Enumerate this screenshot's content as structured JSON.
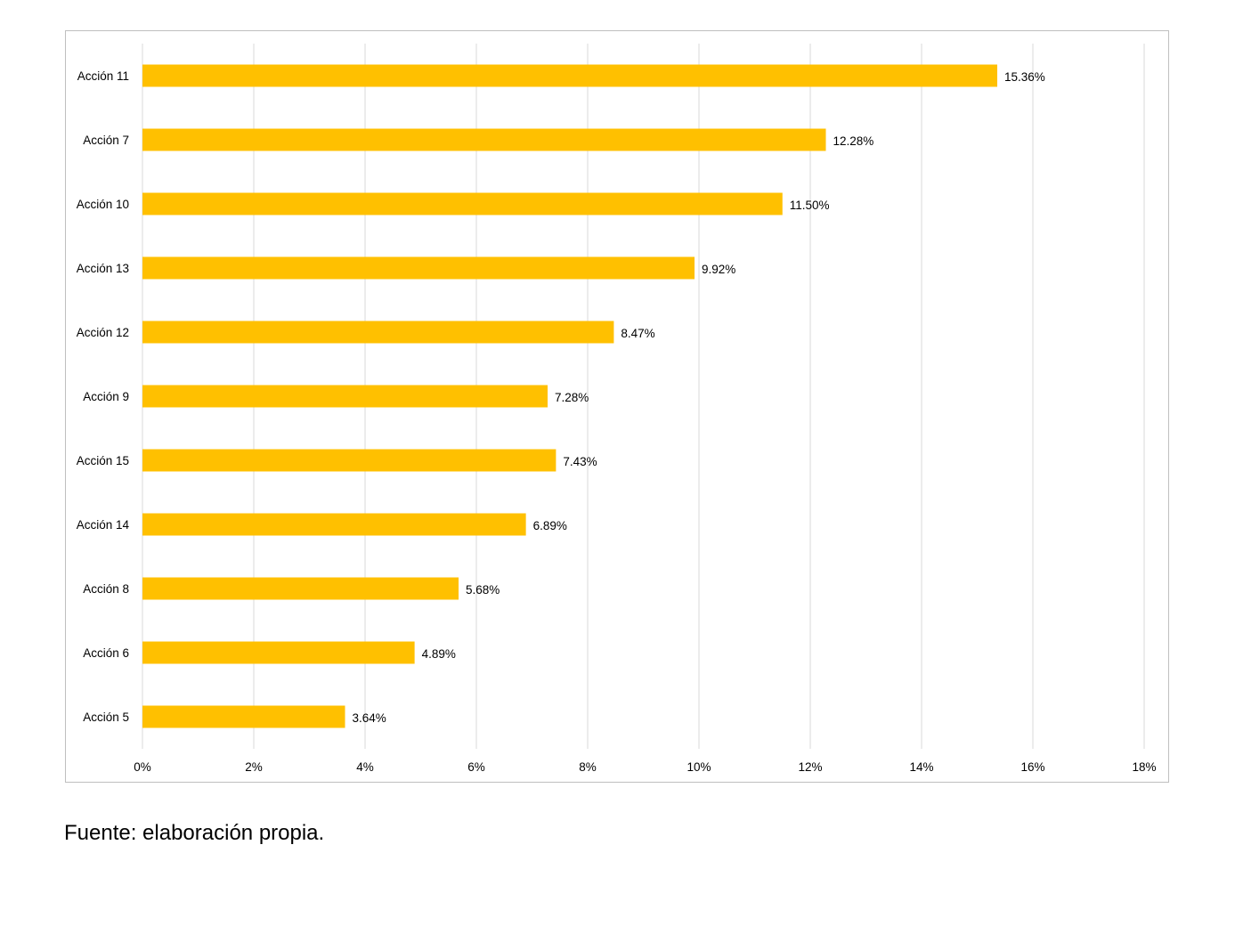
{
  "chart_data": {
    "type": "bar",
    "orientation": "horizontal",
    "categories": [
      "Acción 11",
      "Acción 7",
      "Acción 10",
      "Acción 13",
      "Acción 12",
      "Acción 9",
      "Acción 15",
      "Acción 14",
      "Acción 8",
      "Acción 6",
      "Acción 5"
    ],
    "values": [
      15.36,
      12.28,
      11.5,
      9.92,
      8.47,
      7.28,
      7.43,
      6.89,
      5.68,
      4.89,
      3.64
    ],
    "value_labels": [
      "15.36%",
      "12.28%",
      "11.50%",
      "9.92%",
      "8.47%",
      "7.28%",
      "7.43%",
      "6.89%",
      "5.68%",
      "4.89%",
      "3.64%"
    ],
    "x_ticks": [
      "0%",
      "2%",
      "4%",
      "6%",
      "8%",
      "10%",
      "12%",
      "14%",
      "16%",
      "18%"
    ],
    "xlim": [
      0,
      18
    ],
    "grid": "vertical",
    "title": "",
    "xlabel": "",
    "ylabel": "",
    "bar_color": "#FFC000",
    "grid_color": "#d9d9d9"
  },
  "caption": "Fuente: elaboración propia."
}
